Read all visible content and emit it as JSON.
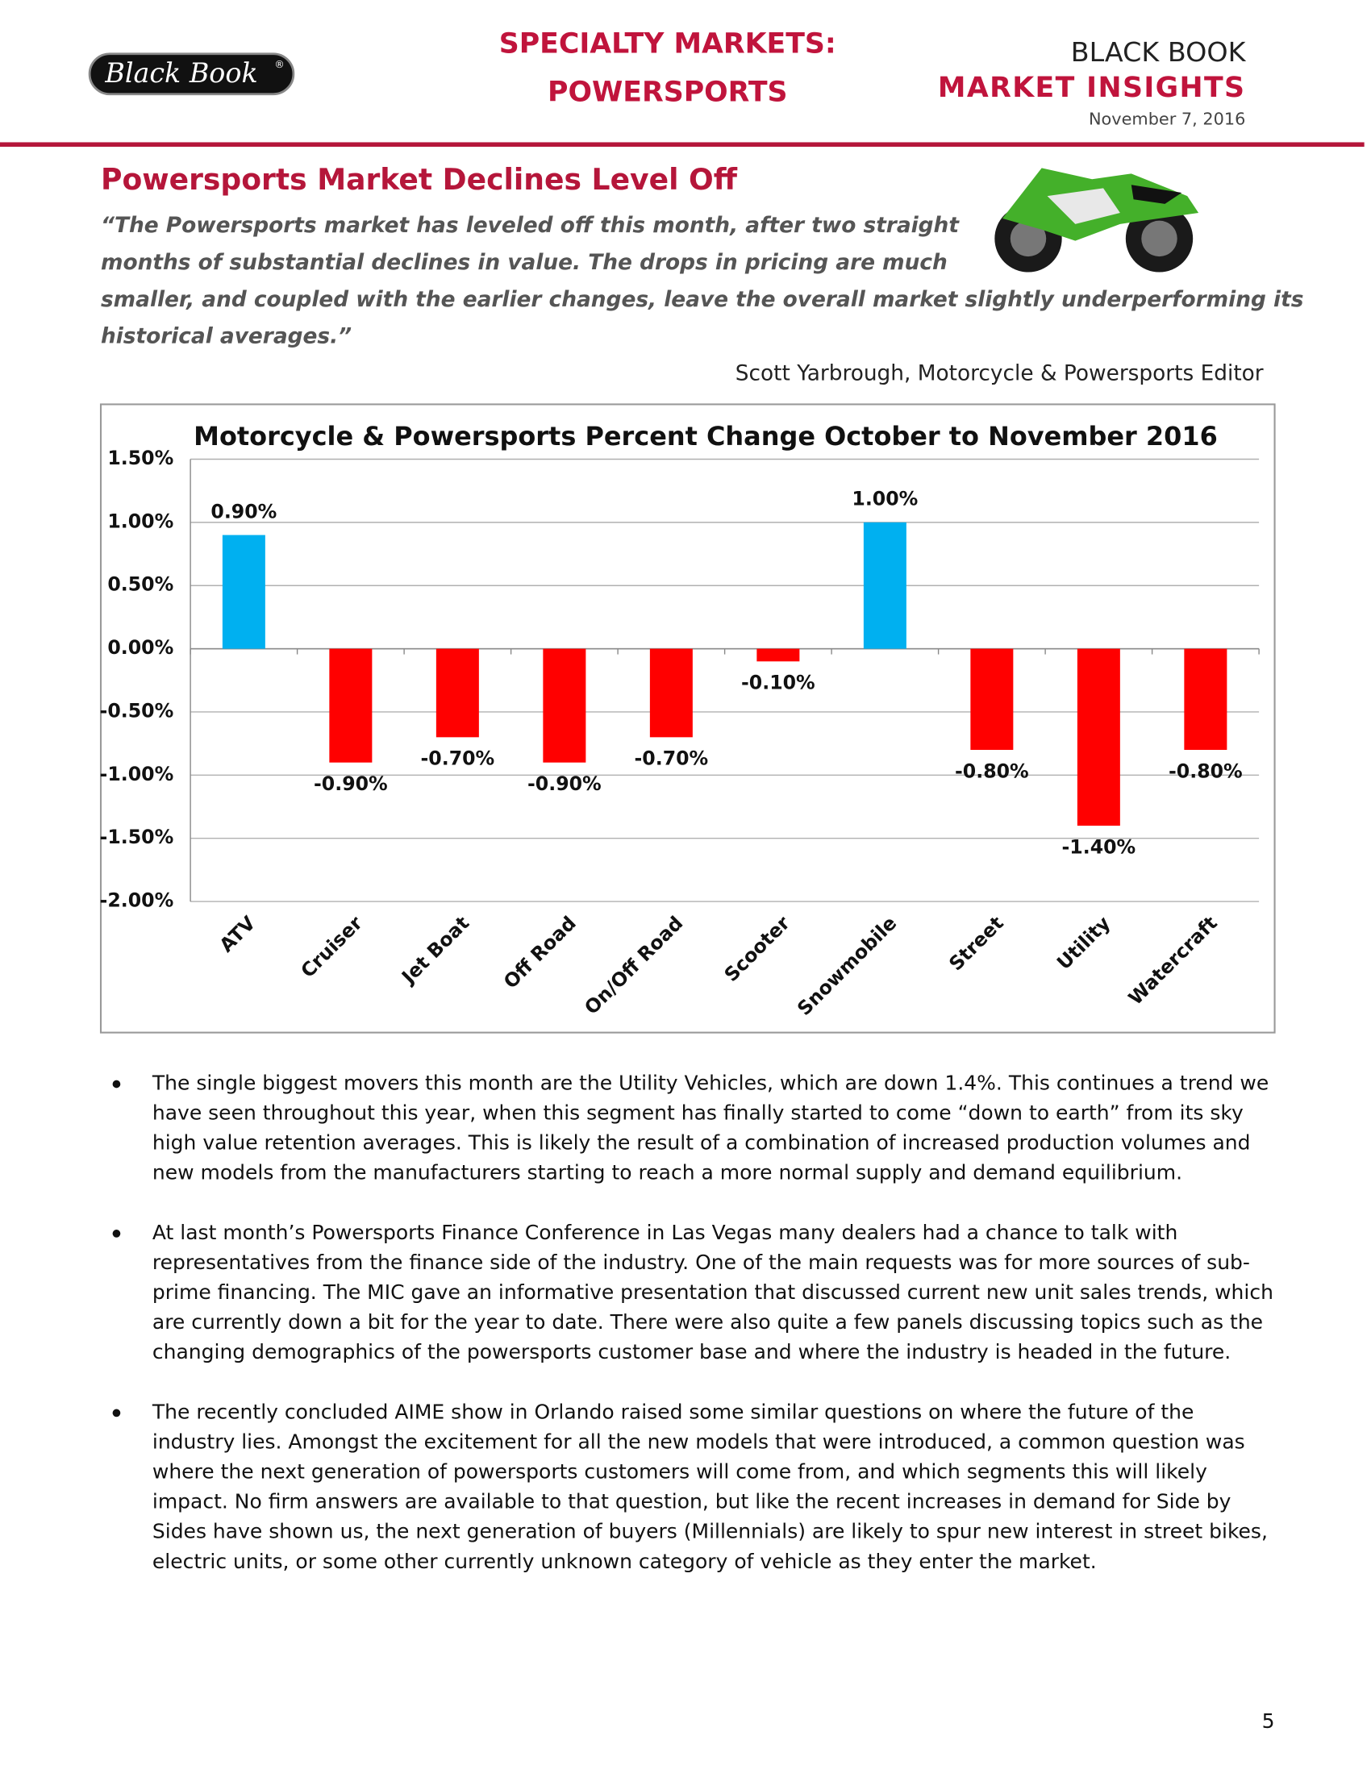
{
  "header": {
    "logo": "Black Book",
    "logo_mark": "®",
    "section": [
      "SPECIALTY MARKETS:",
      "POWERSPORTS"
    ],
    "brand": "BLACK BOOK",
    "brand_sub": "MARKET INSIGHTS",
    "date": "November 7, 2016"
  },
  "article": {
    "headline": "Powersports Market Declines Level Off",
    "quote": [
      "“The Powersports market has leveled off this month, after two straight",
      "months of substantial declines in value.  The drops in pricing are much",
      "smaller, and coupled with the earlier changes, leave the overall market slightly underperforming its",
      "historical averages.”"
    ],
    "attribution": "Scott Yarbrough, Motorcycle & Powersports Editor"
  },
  "chart_data": {
    "type": "bar",
    "title": "Motorcycle & Powersports Percent Change October to November 2016",
    "categories": [
      "ATV",
      "Cruiser",
      "Jet Boat",
      "Off Road",
      "On/Off Road",
      "Scooter",
      "Snowmobile",
      "Street",
      "Utility",
      "Watercraft"
    ],
    "values": [
      0.9,
      -0.9,
      -0.7,
      -0.9,
      -0.7,
      -0.1,
      1.0,
      -0.8,
      -1.4,
      -0.8
    ],
    "value_labels": [
      "0.90%",
      "-0.90%",
      "-0.70%",
      "-0.90%",
      "-0.70%",
      "-0.10%",
      "1.00%",
      "-0.80%",
      "-1.40%",
      "-0.80%"
    ],
    "positive_color": "#00b0f0",
    "negative_color": "#ff0000",
    "ylim": [
      -2.0,
      1.5
    ],
    "yticks": [
      {
        "value": 1.5,
        "label": "1.50%"
      },
      {
        "value": 1.0,
        "label": "1.00%"
      },
      {
        "value": 0.5,
        "label": "0.50%"
      },
      {
        "value": 0,
        "label": "0.00%"
      },
      {
        "value": -0.5,
        "label": "-0.50%"
      },
      {
        "value": -1.0,
        "label": "-1.00%"
      },
      {
        "value": -1.5,
        "label": "-1.50%"
      },
      {
        "value": -2.0,
        "label": "-2.00%"
      }
    ],
    "grid": true
  },
  "bullets": [
    [
      "The single biggest movers this month are the Utility Vehicles, which are down 1.4%.  This continues a trend we",
      "have seen throughout this year, when this segment has finally started to come “down to earth” from its sky",
      "high value retention averages.  This is likely the result of a combination of increased production volumes and",
      "new models from the manufacturers starting to reach a more normal supply and demand equilibrium."
    ],
    [
      "At last month’s Powersports Finance Conference in Las Vegas many dealers had a chance to talk with",
      "representatives from the finance side of the industry.  One of the main requests was for more sources of sub-",
      "prime financing.  The MIC gave an informative presentation that discussed current new unit sales trends, which",
      "are currently down a bit for the year to date.  There were also quite a few panels discussing topics such as the",
      "changing demographics of the powersports customer base and where the industry is headed in the future."
    ],
    [
      "The recently concluded AIME show in Orlando raised some similar questions on where the future of the",
      "industry lies.  Amongst the excitement for all the new models that were introduced, a common question was",
      "where the next generation of powersports customers will come from, and which segments this will likely",
      "impact.  No firm answers are available to that question, but like the recent increases in demand for Side by",
      "Sides have shown us, the next generation of buyers (Millennials) are likely to spur new interest in street bikes,",
      "electric units, or some other currently unknown category of vehicle as they enter the market."
    ]
  ],
  "page_number": "5"
}
